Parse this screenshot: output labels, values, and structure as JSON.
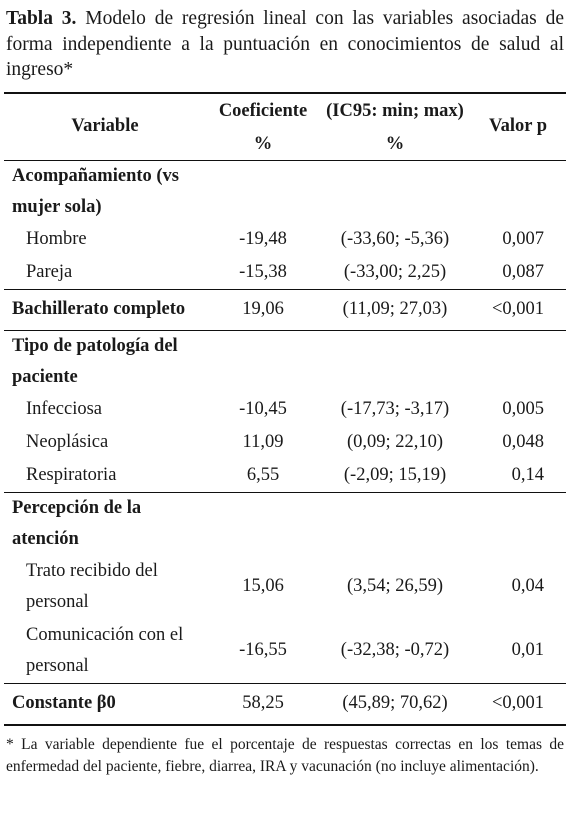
{
  "caption": {
    "label": "Tabla 3.",
    "text": " Modelo de regresión lineal con las variables asociadas de forma independiente a la puntuación en conocimientos de salud al ingreso*"
  },
  "header": {
    "variable": "Variable",
    "coef": "Coeficiente",
    "ic": "(IC95: min; max)",
    "pvalue": "Valor p",
    "coef_unit": "%",
    "ic_unit": "%"
  },
  "groups": {
    "acomp": {
      "title_line1": "Acompañamiento (vs",
      "title_line2": "mujer sola)",
      "rows": [
        {
          "name": "Hombre",
          "coef": "-19,48",
          "ic": "(-33,60; -5,36)",
          "p": "0,007"
        },
        {
          "name": "Pareja",
          "coef": "-15,38",
          "ic": "(-33,00; 2,25)",
          "p": "0,087"
        }
      ]
    },
    "bach": {
      "name": "Bachillerato completo",
      "coef": "19,06",
      "ic": "(11,09; 27,03)",
      "p": "<0,001"
    },
    "patologia": {
      "title_line1": "Tipo de patología del",
      "title_line2": "paciente",
      "rows": [
        {
          "name": "Infecciosa",
          "coef": "-10,45",
          "ic": "(-17,73; -3,17)",
          "p": "0,005"
        },
        {
          "name": "Neoplásica",
          "coef": "11,09",
          "ic": "(0,09; 22,10)",
          "p": "0,048"
        },
        {
          "name": "Respiratoria",
          "coef": "6,55",
          "ic": "(-2,09; 15,19)",
          "p": "0,14"
        }
      ]
    },
    "percepcion": {
      "title_line1": "Percepción de la",
      "title_line2": "atención",
      "rows": [
        {
          "name_line1": "Trato recibido del",
          "name_line2": "personal",
          "coef": "15,06",
          "ic": "(3,54; 26,59)",
          "p": "0,04"
        },
        {
          "name_line1": "Comunicación con el",
          "name_line2": "personal",
          "coef": "-16,55",
          "ic": "(-32,38; -0,72)",
          "p": "0,01"
        }
      ]
    },
    "constante": {
      "name": "Constante β0",
      "coef": "58,25",
      "ic": "(45,89; 70,62)",
      "p": "<0,001"
    }
  },
  "footnote": "* La variable dependiente fue el porcentaje de respuestas correctas en los temas de enfermedad del paciente, fiebre, diarrea, IRA y vacunación (no incluye alimentación)."
}
